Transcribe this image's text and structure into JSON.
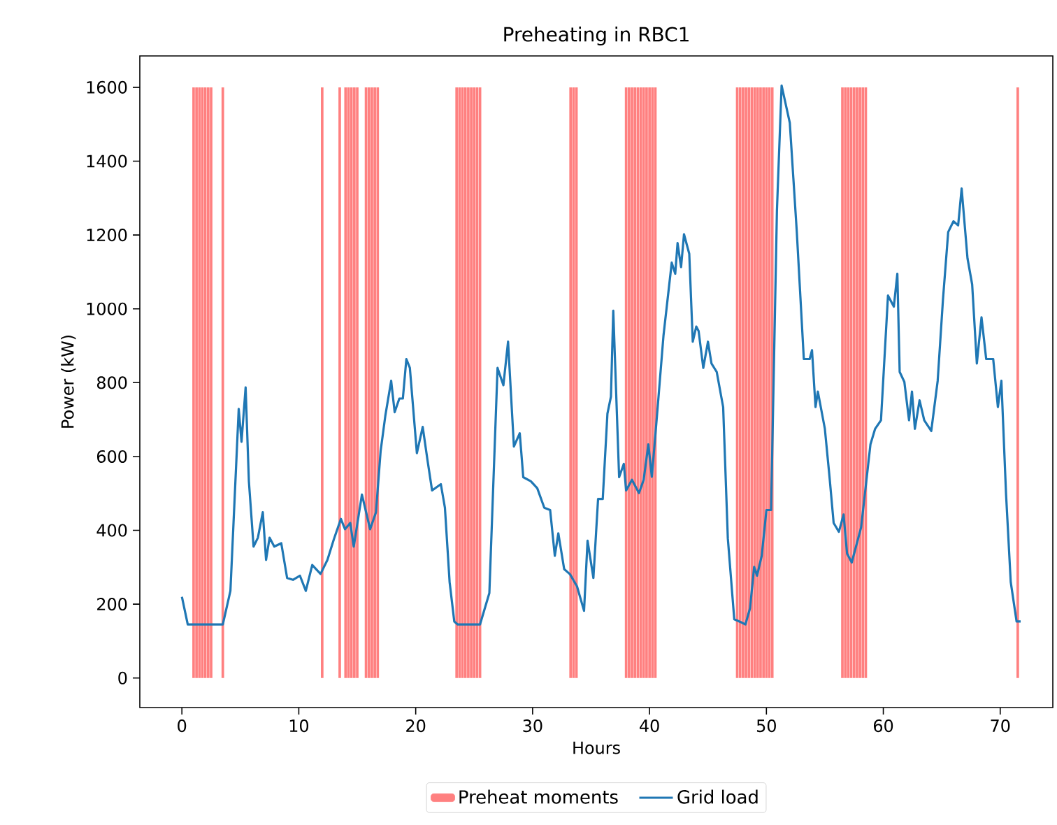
{
  "chart_data": {
    "type": "line",
    "title": "Preheating in RBC1",
    "xlabel": "Hours",
    "ylabel": "Power (kW)",
    "xlim": [
      -3.6,
      74.5
    ],
    "ylim": [
      -80,
      1685
    ],
    "xticks": [
      0,
      10,
      20,
      30,
      40,
      50,
      60,
      70
    ],
    "yticks": [
      0,
      200,
      400,
      600,
      800,
      1000,
      1200,
      1400,
      1600
    ],
    "legend": "bottom",
    "series": [
      {
        "name": "Preheat moments",
        "type": "bar",
        "color": "#ff8080",
        "x": [
          1.0,
          1.25,
          1.5,
          1.75,
          2.0,
          2.25,
          2.5,
          3.5,
          12.0,
          13.5,
          14.0,
          14.25,
          14.5,
          14.75,
          15.0,
          15.75,
          16.0,
          16.25,
          16.5,
          16.75,
          23.5,
          23.75,
          24.0,
          24.25,
          24.5,
          24.75,
          25.0,
          25.25,
          25.5,
          33.25,
          33.5,
          33.75,
          38.0,
          38.25,
          38.5,
          38.75,
          39.0,
          39.25,
          39.5,
          39.75,
          40.0,
          40.25,
          40.5,
          47.5,
          47.75,
          48.0,
          48.25,
          48.5,
          48.75,
          49.0,
          49.25,
          49.5,
          49.75,
          50.0,
          50.25,
          50.5,
          56.5,
          56.75,
          57.0,
          57.25,
          57.5,
          57.75,
          58.0,
          58.25,
          58.5,
          71.5
        ],
        "values": [
          1600,
          1600,
          1600,
          1600,
          1600,
          1600,
          1600,
          1600,
          1600,
          1600,
          1600,
          1600,
          1600,
          1600,
          1600,
          1600,
          1600,
          1600,
          1600,
          1600,
          1600,
          1600,
          1600,
          1600,
          1600,
          1600,
          1600,
          1600,
          1600,
          1600,
          1600,
          1600,
          1600,
          1600,
          1600,
          1600,
          1600,
          1600,
          1600,
          1600,
          1600,
          1600,
          1600,
          1600,
          1600,
          1600,
          1600,
          1600,
          1600,
          1600,
          1600,
          1600,
          1600,
          1600,
          1600,
          1600,
          1600,
          1600,
          1600,
          1600,
          1600,
          1600,
          1600,
          1600,
          1600,
          1600
        ]
      },
      {
        "name": "Grid load",
        "color": "#1f77b4",
        "x": [
          0,
          0.5,
          3.5,
          4.15,
          4.86,
          5.1,
          5.45,
          5.73,
          6.13,
          6.5,
          6.92,
          7.2,
          7.5,
          7.9,
          8.5,
          9.0,
          9.5,
          10.1,
          10.6,
          11.15,
          11.86,
          12.45,
          13.0,
          13.6,
          13.95,
          14.4,
          14.7,
          15.4,
          16.1,
          16.6,
          17.0,
          17.4,
          17.9,
          18.2,
          18.6,
          18.9,
          19.2,
          19.5,
          20.1,
          20.6,
          21.0,
          21.4,
          22.15,
          22.5,
          22.9,
          23.3,
          23.6,
          25.5,
          26.3,
          27.0,
          27.5,
          27.9,
          28.4,
          28.9,
          29.2,
          29.85,
          30.4,
          31.0,
          31.5,
          31.9,
          32.2,
          32.7,
          33.2,
          33.8,
          34.4,
          34.7,
          35.2,
          35.6,
          36.0,
          36.4,
          36.7,
          36.9,
          37.4,
          37.8,
          38.0,
          38.5,
          39.1,
          39.5,
          39.9,
          40.2,
          40.7,
          41.2,
          41.9,
          42.2,
          42.4,
          42.7,
          42.95,
          43.4,
          43.7,
          44.0,
          44.2,
          44.6,
          45.0,
          45.3,
          45.75,
          46.3,
          46.7,
          47.25,
          47.9,
          48.2,
          48.6,
          48.95,
          49.2,
          49.6,
          50.0,
          50.4,
          50.9,
          51.3,
          52.0,
          52.6,
          53.2,
          53.7,
          53.9,
          54.2,
          54.4,
          55.0,
          55.4,
          55.75,
          56.2,
          56.6,
          56.9,
          57.3,
          58.1,
          58.5,
          58.9,
          59.3,
          59.8,
          60.4,
          60.9,
          61.2,
          61.4,
          61.8,
          62.2,
          62.45,
          62.7,
          63.1,
          63.5,
          64.1,
          64.65,
          65.1,
          65.55,
          66.0,
          66.4,
          66.7,
          67.2,
          67.6,
          68.0,
          68.4,
          68.8,
          69.4,
          69.8,
          70.1,
          70.5,
          70.9,
          71.4,
          71.75
        ],
        "values": [
          220,
          145,
          145,
          236,
          729,
          640,
          787,
          533,
          356,
          380,
          449,
          320,
          380,
          356,
          365,
          271,
          266,
          277,
          236,
          306,
          282,
          320,
          376,
          431,
          403,
          420,
          356,
          497,
          403,
          449,
          615,
          710,
          805,
          720,
          757,
          757,
          864,
          840,
          609,
          680,
          592,
          508,
          525,
          461,
          260,
          153,
          145,
          145,
          230,
          840,
          793,
          911,
          627,
          663,
          544,
          533,
          514,
          461,
          455,
          331,
          392,
          295,
          281,
          248,
          182,
          372,
          271,
          485,
          485,
          716,
          762,
          995,
          544,
          580,
          508,
          537,
          501,
          537,
          633,
          545,
          734,
          929,
          1125,
          1095,
          1178,
          1113,
          1202,
          1149,
          911,
          952,
          940,
          840,
          911,
          852,
          829,
          734,
          378,
          159,
          150,
          145,
          189,
          301,
          277,
          331,
          455,
          455,
          1267,
          1605,
          1504,
          1208,
          864,
          864,
          888,
          734,
          776,
          675,
          544,
          420,
          396,
          443,
          337,
          313,
          408,
          520,
          633,
          675,
          698,
          1036,
          1006,
          1095,
          829,
          802,
          698,
          776,
          675,
          752,
          698,
          669,
          805,
          1024,
          1208,
          1237,
          1226,
          1326,
          1137,
          1066,
          852,
          977,
          864,
          864,
          734,
          805,
          497,
          260,
          153,
          153
        ]
      }
    ]
  }
}
